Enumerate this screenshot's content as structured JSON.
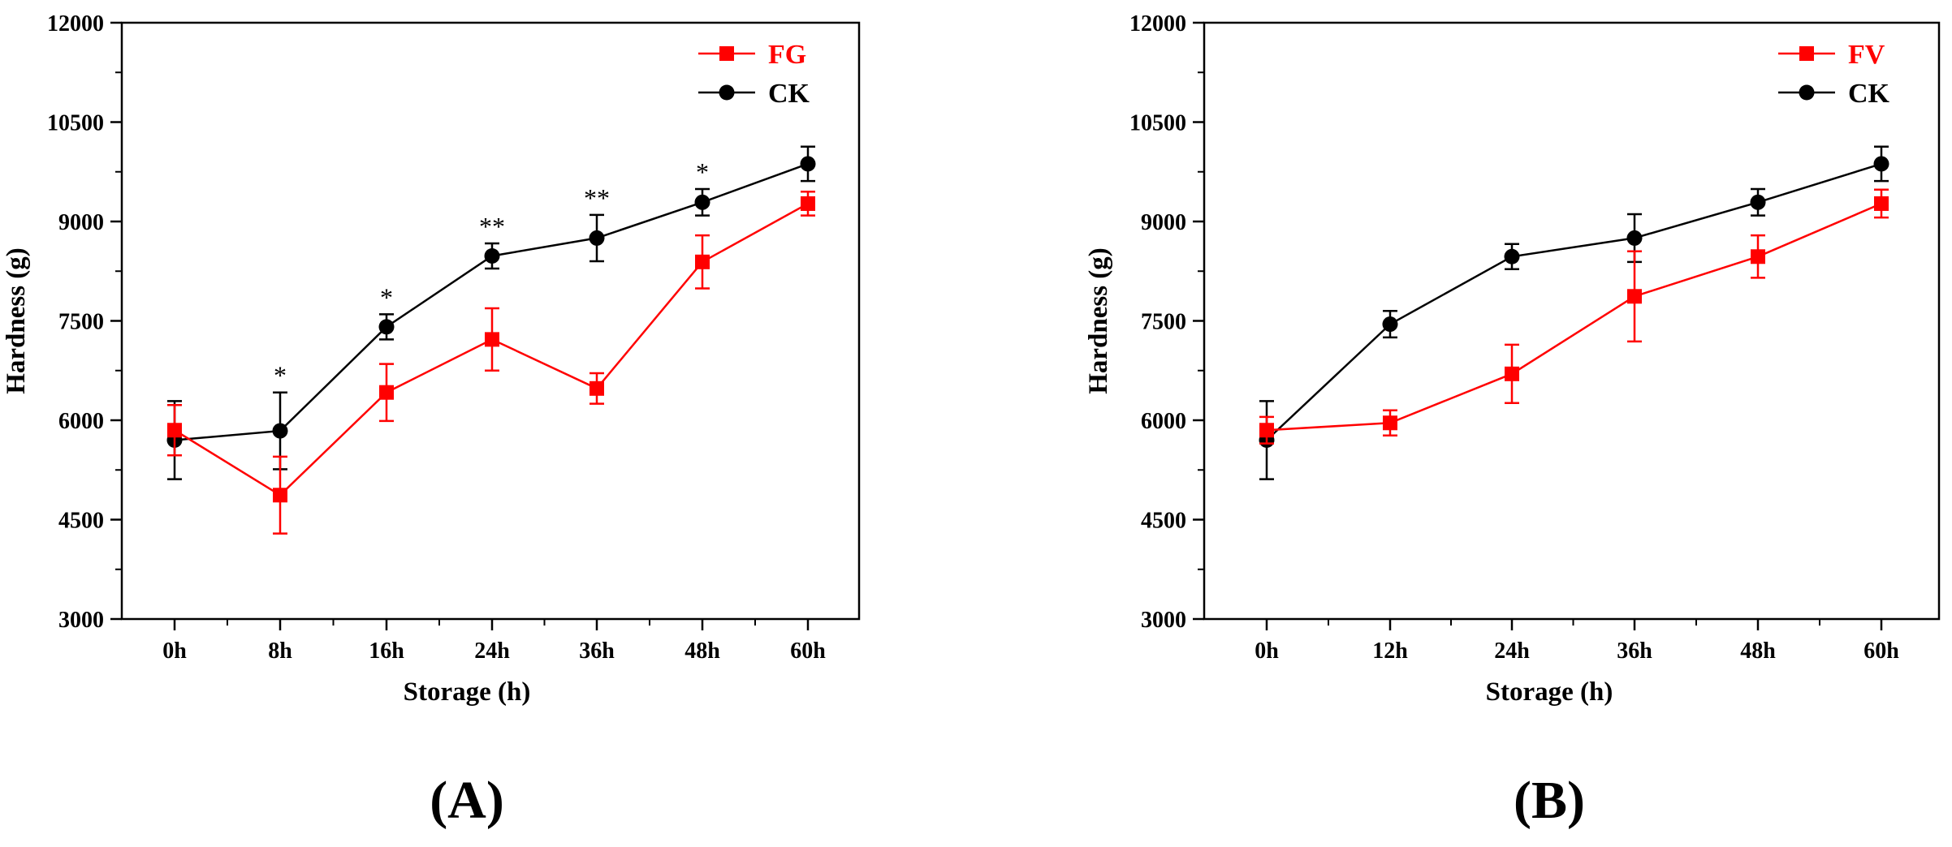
{
  "chart_data": [
    {
      "type": "line",
      "panel_label": "(A)",
      "xlabel": "Storage (h)",
      "ylabel": "Hardness (g)",
      "categories": [
        "0h",
        "8h",
        "16h",
        "24h",
        "36h",
        "48h",
        "60h"
      ],
      "ylim": [
        3000,
        12000
      ],
      "yticks": [
        "3000",
        "4500",
        "6000",
        "7500",
        "9000",
        "10500",
        "12000"
      ],
      "legend_position": "top-right",
      "series": [
        {
          "name": "FG",
          "color": "#ff0000",
          "marker": "square",
          "values": [
            5850,
            4870,
            6420,
            7220,
            6480,
            8390,
            9270
          ],
          "errors": [
            380,
            580,
            430,
            470,
            230,
            400,
            180
          ]
        },
        {
          "name": "CK",
          "color": "#000000",
          "marker": "circle",
          "values": [
            5700,
            5840,
            7410,
            8480,
            8750,
            9290,
            9870
          ],
          "errors": [
            590,
            580,
            190,
            190,
            350,
            200,
            260
          ]
        }
      ],
      "significance": [
        {
          "category": "8h",
          "label": "*"
        },
        {
          "category": "16h",
          "label": "*"
        },
        {
          "category": "24h",
          "label": "**"
        },
        {
          "category": "36h",
          "label": "**"
        },
        {
          "category": "48h",
          "label": "*"
        }
      ]
    },
    {
      "type": "line",
      "panel_label": "(B)",
      "xlabel": "Storage (h)",
      "ylabel": "Hardness (g)",
      "categories": [
        "0h",
        "12h",
        "24h",
        "36h",
        "48h",
        "60h"
      ],
      "ylim": [
        3000,
        12000
      ],
      "yticks": [
        "3000",
        "4500",
        "6000",
        "7500",
        "9000",
        "10500",
        "12000"
      ],
      "legend_position": "top-right",
      "series": [
        {
          "name": "FV",
          "color": "#ff0000",
          "marker": "square",
          "values": [
            5850,
            5960,
            6700,
            7870,
            8470,
            9270
          ],
          "errors": [
            200,
            190,
            440,
            680,
            320,
            210
          ]
        },
        {
          "name": "CK",
          "color": "#000000",
          "marker": "circle",
          "values": [
            5700,
            7450,
            8470,
            8750,
            9290,
            9870
          ],
          "errors": [
            590,
            200,
            190,
            360,
            200,
            260
          ]
        }
      ],
      "significance": []
    }
  ]
}
